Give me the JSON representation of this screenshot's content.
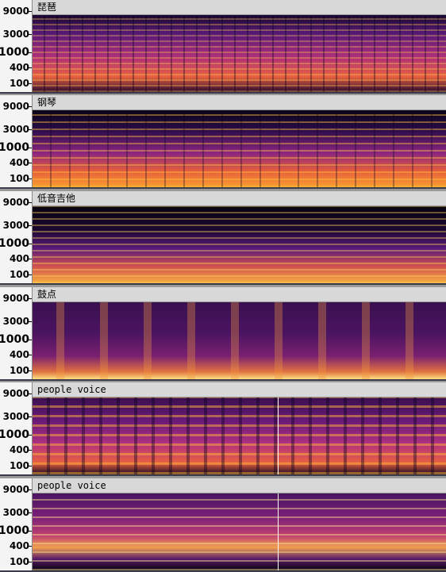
{
  "tracks": [
    {
      "name": "琵琶"
    },
    {
      "name": "钢琴"
    },
    {
      "name": "低音吉他"
    },
    {
      "name": "鼓点"
    },
    {
      "name": "people voice"
    },
    {
      "name": "people voice"
    }
  ],
  "frequency_labels": [
    9000,
    3000,
    1000,
    400,
    100
  ]
}
